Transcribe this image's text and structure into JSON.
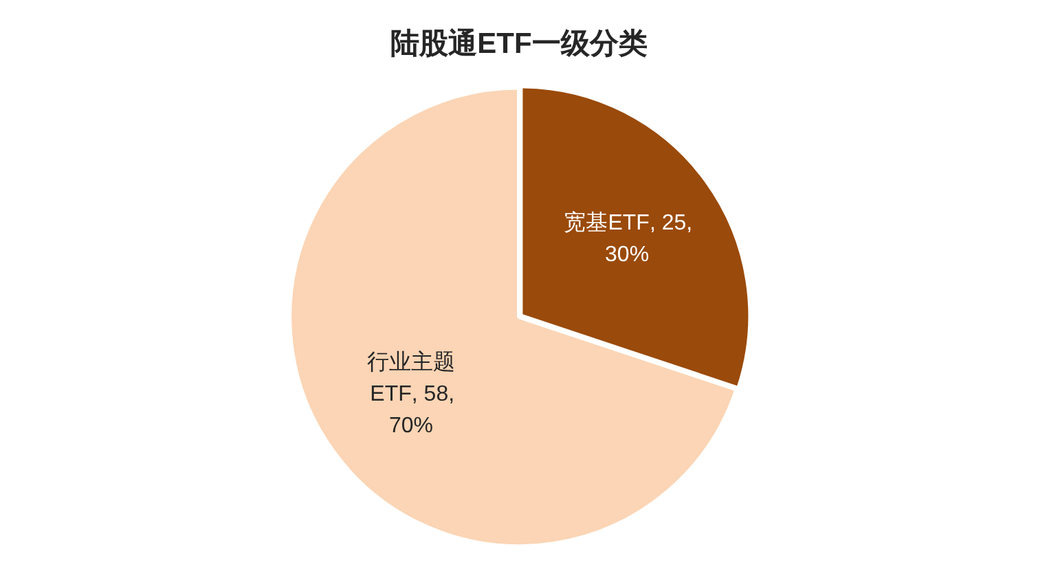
{
  "chart_data": {
    "type": "pie",
    "title": "陆股通ETF一级分类",
    "categories": [
      "宽基ETF",
      "行业主题ETF"
    ],
    "values": [
      25,
      58
    ],
    "colors": [
      "#9a4a0a",
      "#fbd5b5"
    ],
    "value_labels": [
      ", 25, 30%",
      ", 58, 70%"
    ],
    "legend": false
  }
}
